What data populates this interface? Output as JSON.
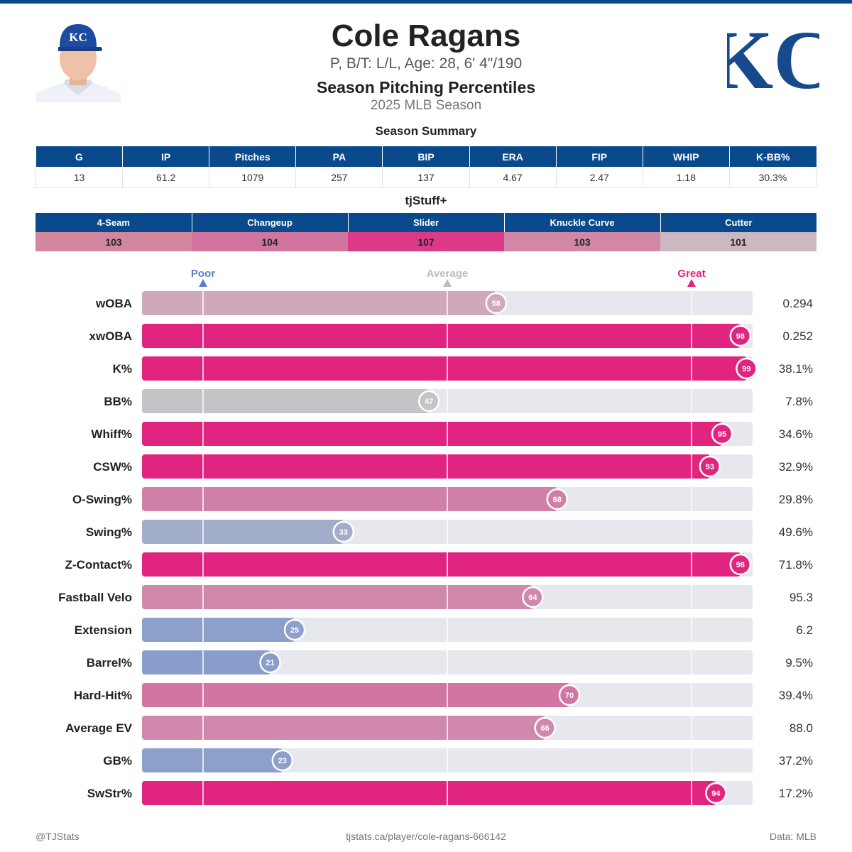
{
  "player": {
    "name": "Cole Ragans",
    "info": "P, B/T: L/L, Age: 28, 6' 4\"/190"
  },
  "section_title": "Season Pitching Percentiles",
  "season_label": "2025 MLB Season",
  "team_logo_text": "KC",
  "summary": {
    "title": "Season Summary",
    "headers": [
      "G",
      "IP",
      "Pitches",
      "PA",
      "BIP",
      "ERA",
      "FIP",
      "WHIP",
      "K-BB%"
    ],
    "values": [
      "13",
      "61.2",
      "1079",
      "257",
      "137",
      "4.67",
      "2.47",
      "1.18",
      "30.3%"
    ]
  },
  "tjstuff": {
    "title": "tjStuff+",
    "headers": [
      "4-Seam",
      "Changeup",
      "Slider",
      "Knuckle Curve",
      "Cutter"
    ],
    "values": [
      "103",
      "104",
      "107",
      "103",
      "101"
    ],
    "colors": [
      "#d2879d",
      "#d1759e",
      "#dc3a89",
      "#d287a6",
      "#cbb8c1"
    ]
  },
  "chart_data": {
    "type": "bar",
    "orientation": "horizontal",
    "xlim": [
      0,
      100
    ],
    "markers": [
      {
        "label": "Poor",
        "value": 10,
        "color": "#5b7fc6"
      },
      {
        "label": "Average",
        "value": 50,
        "color": "#bdbdbd"
      },
      {
        "label": "Great",
        "value": 90,
        "color": "#e0247f"
      }
    ],
    "categories": [
      "wOBA",
      "xwOBA",
      "K%",
      "BB%",
      "Whiff%",
      "CSW%",
      "O-Swing%",
      "Swing%",
      "Z-Contact%",
      "Fastball Velo",
      "Extension",
      "Barrel%",
      "Hard-Hit%",
      "Average EV",
      "GB%",
      "SwStr%"
    ],
    "percentiles": [
      58,
      98,
      99,
      47,
      95,
      93,
      68,
      33,
      98,
      64,
      25,
      21,
      70,
      66,
      23,
      94
    ],
    "values": [
      "0.294",
      "0.252",
      "38.1%",
      "7.8%",
      "34.6%",
      "32.9%",
      "29.8%",
      "49.6%",
      "71.8%",
      "95.3",
      "6.2",
      "9.5%",
      "39.4%",
      "88.0",
      "37.2%",
      "17.2%"
    ],
    "colors": [
      "#cfa8b9",
      "#e0247f",
      "#e0247f",
      "#c3c4c8",
      "#e0247f",
      "#e0247f",
      "#d07fa6",
      "#a2adc9",
      "#e0247f",
      "#d088ab",
      "#8d9fcb",
      "#889dcb",
      "#d175a3",
      "#d088ad",
      "#8d9fcb",
      "#e0247f"
    ],
    "grid": true
  },
  "footer": {
    "left": "@TJStats",
    "center": "tjstats.ca/player/cole-ragans-666142",
    "right": "Data: MLB"
  }
}
